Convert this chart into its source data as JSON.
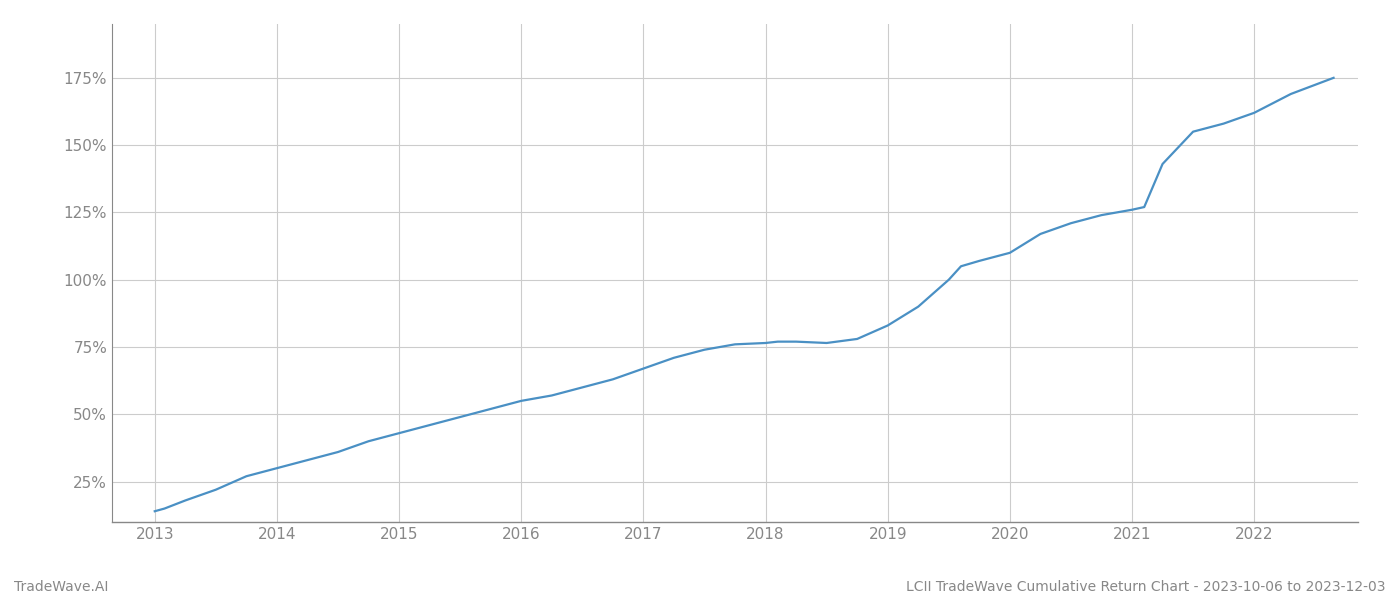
{
  "title": "",
  "footer_left": "TradeWave.AI",
  "footer_right": "LCII TradeWave Cumulative Return Chart - 2023-10-06 to 2023-12-03",
  "line_color": "#4a90c4",
  "background_color": "#ffffff",
  "grid_color": "#cccccc",
  "x_years": [
    2013,
    2014,
    2015,
    2016,
    2017,
    2018,
    2019,
    2020,
    2021,
    2022
  ],
  "x_values": [
    2013.0,
    2013.08,
    2013.25,
    2013.5,
    2013.75,
    2014.0,
    2014.25,
    2014.5,
    2014.75,
    2015.0,
    2015.25,
    2015.5,
    2015.75,
    2016.0,
    2016.25,
    2016.5,
    2016.75,
    2017.0,
    2017.25,
    2017.5,
    2017.75,
    2018.0,
    2018.1,
    2018.25,
    2018.5,
    2018.75,
    2019.0,
    2019.25,
    2019.5,
    2019.6,
    2019.75,
    2020.0,
    2020.25,
    2020.5,
    2020.75,
    2021.0,
    2021.1,
    2021.25,
    2021.5,
    2021.75,
    2022.0,
    2022.3,
    2022.65
  ],
  "y_values": [
    14,
    15,
    18,
    22,
    27,
    30,
    33,
    36,
    40,
    43,
    46,
    49,
    52,
    55,
    57,
    60,
    63,
    67,
    71,
    74,
    76,
    76.5,
    77,
    77,
    76.5,
    78,
    83,
    90,
    100,
    105,
    107,
    110,
    117,
    121,
    124,
    126,
    127,
    143,
    155,
    158,
    162,
    169,
    175
  ],
  "ylim": [
    10,
    195
  ],
  "xlim": [
    2012.65,
    2022.85
  ],
  "yticks": [
    25,
    50,
    75,
    100,
    125,
    150,
    175
  ],
  "ytick_labels": [
    "25%",
    "50%",
    "75%",
    "100%",
    "125%",
    "150%",
    "175%"
  ],
  "line_width": 1.6,
  "footer_fontsize": 10,
  "tick_fontsize": 11,
  "tick_color": "#888888",
  "spine_color": "#888888"
}
